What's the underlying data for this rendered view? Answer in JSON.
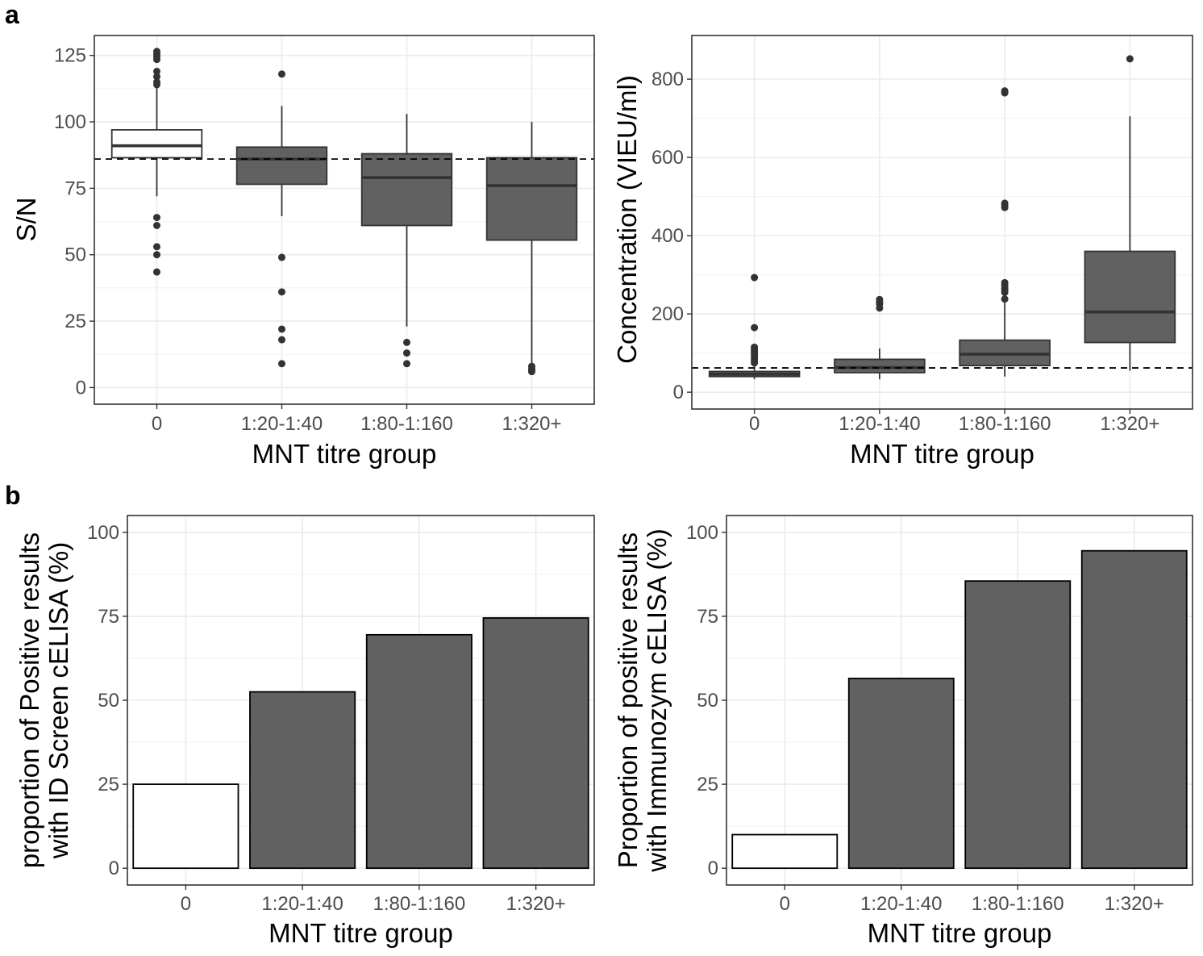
{
  "panel_labels": {
    "a": "a",
    "b": "b"
  },
  "colors": {
    "filled": "#616161",
    "control": "#ffffff",
    "grid_major": "#ebebeb",
    "grid_minor": "#f4f4f4",
    "border": "#333333",
    "tick_text": "#4d4d4d"
  },
  "chart_data": [
    {
      "id": "sn",
      "type": "box",
      "xlabel": "MNT titre group",
      "ylabel": "S/N",
      "categories": [
        "0",
        "1:20-1:40",
        "1:80-1:160",
        "1:320+"
      ],
      "ylim": [
        0,
        125
      ],
      "yticks": [
        0,
        25,
        50,
        75,
        100,
        125
      ],
      "yticklabels": [
        "0",
        "25",
        "50",
        "75",
        "100",
        "125"
      ],
      "threshold": 86,
      "grid": true,
      "boxes": [
        {
          "q1": 86.5,
          "median": 91,
          "q3": 97,
          "whisker_low": 72,
          "whisker_high": 114,
          "fill": "#ffffff",
          "outliers": [
            126.5,
            125.5,
            124.5,
            123.5,
            119,
            117,
            115,
            114,
            64,
            61,
            53,
            50,
            43.5
          ]
        },
        {
          "q1": 76.5,
          "median": 86,
          "q3": 90.5,
          "whisker_low": 64.5,
          "whisker_high": 106,
          "fill": "#616161",
          "outliers": [
            118,
            49,
            36,
            22,
            18,
            9
          ]
        },
        {
          "q1": 61,
          "median": 79,
          "q3": 88,
          "whisker_low": 23,
          "whisker_high": 103,
          "fill": "#616161",
          "outliers": [
            17,
            13,
            9
          ]
        },
        {
          "q1": 55.5,
          "median": 76,
          "q3": 86.5,
          "whisker_low": 9,
          "whisker_high": 100,
          "fill": "#616161",
          "outliers": [
            8,
            7,
            6.5,
            6
          ]
        }
      ]
    },
    {
      "id": "conc",
      "type": "box",
      "xlabel": "MNT titre group",
      "ylabel": "Concentration (VIEU/ml)",
      "categories": [
        "0",
        "1:20-1:40",
        "1:80-1:160",
        "1:320+"
      ],
      "ylim": [
        0,
        860
      ],
      "yticks": [
        0,
        200,
        400,
        600,
        800
      ],
      "yticklabels": [
        "0",
        "200",
        "400",
        "600",
        "800"
      ],
      "threshold": 62,
      "grid": true,
      "boxes": [
        {
          "q1": 40,
          "median": 46,
          "q3": 53,
          "whisker_low": 33,
          "whisker_high": 72,
          "fill": "#616161",
          "outliers": [
            293,
            165,
            115,
            110,
            105,
            100,
            95,
            90,
            85,
            80,
            75
          ]
        },
        {
          "q1": 50,
          "median": 63,
          "q3": 84,
          "whisker_low": 33,
          "whisker_high": 112,
          "fill": "#616161",
          "outliers": [
            237,
            230,
            225,
            215
          ]
        },
        {
          "q1": 68,
          "median": 97,
          "q3": 133,
          "whisker_low": 40,
          "whisker_high": 230,
          "fill": "#616161",
          "outliers": [
            770,
            765,
            483,
            478,
            472,
            280,
            273,
            266,
            260,
            255,
            238
          ]
        },
        {
          "q1": 127,
          "median": 205,
          "q3": 360,
          "whisker_low": 55,
          "whisker_high": 705,
          "fill": "#616161",
          "outliers": [
            852
          ]
        }
      ]
    },
    {
      "id": "idscreen",
      "type": "bar",
      "xlabel": "MNT titre group",
      "ylabel_lines": [
        "proportion of Positive results",
        "with ID Screen cELISA (%)"
      ],
      "categories": [
        "0",
        "1:20-1:40",
        "1:80-1:160",
        "1:320+"
      ],
      "values": [
        25,
        52.5,
        69.5,
        74.5
      ],
      "fills": [
        "#ffffff",
        "#616161",
        "#616161",
        "#616161"
      ],
      "ylim": [
        -5,
        105
      ],
      "yticks": [
        0,
        25,
        50,
        75,
        100
      ],
      "yticklabels": [
        "0",
        "25",
        "50",
        "75",
        "100"
      ],
      "grid": true
    },
    {
      "id": "immunozym",
      "type": "bar",
      "xlabel": "MNT titre group",
      "ylabel_lines": [
        "Proportion of positive results",
        "with Immunozym cELISA (%)"
      ],
      "categories": [
        "0",
        "1:20-1:40",
        "1:80-1:160",
        "1:320+"
      ],
      "values": [
        10,
        56.5,
        85.5,
        94.5
      ],
      "fills": [
        "#ffffff",
        "#616161",
        "#616161",
        "#616161"
      ],
      "ylim": [
        -5,
        105
      ],
      "yticks": [
        0,
        25,
        50,
        75,
        100
      ],
      "yticklabels": [
        "0",
        "25",
        "50",
        "75",
        "100"
      ],
      "grid": true
    }
  ]
}
